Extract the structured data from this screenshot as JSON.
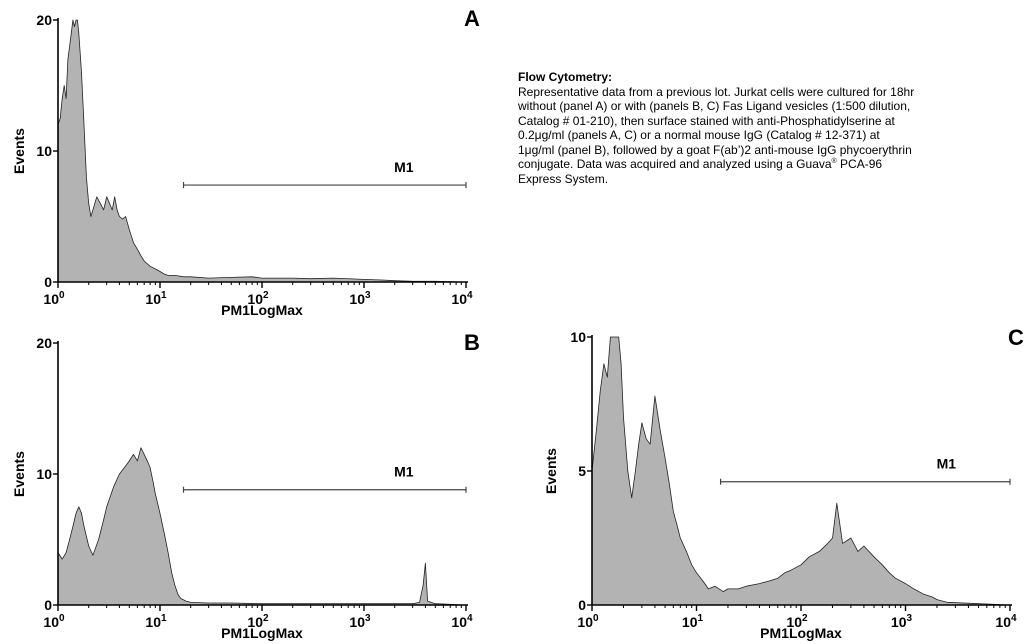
{
  "description": {
    "heading": "Flow Cytometry:",
    "text_part1": "Representative data from a previous lot.  Jurkat cells were cultured for 18hr without (panel A) or with (panels B, C) Fas Ligand vesicles (1:500 dilution, Catalog # 01-210), then surface stained with anti-Phosphatidylserine at 0.2μg/ml (panels A, C) or a normal mouse IgG (Catalog # 12-371) at 1μg/ml (panel B), followed by a goat F(ab’)2 anti-mouse IgG phycoerythrin conjugate.  Data was acquired and analyzed using a Guava",
    "registered_mark": "®",
    "text_part2": " PCA-96 Express System."
  },
  "colors": {
    "fill": "#b3b3b3",
    "line": "#222222",
    "marker": "#444444"
  },
  "chart_data": [
    {
      "type": "area",
      "panel_label": "A",
      "xlabel": "PM1LogMax",
      "ylabel": "Events",
      "x_scale": "log",
      "xlim": [
        1,
        10000
      ],
      "ylim": [
        0,
        20
      ],
      "yticks": [
        0,
        10,
        20
      ],
      "xticks": [
        {
          "base": "10",
          "exp": "0"
        },
        {
          "base": "10",
          "exp": "1"
        },
        {
          "base": "10",
          "exp": "2"
        },
        {
          "base": "10",
          "exp": "3"
        },
        {
          "base": "10",
          "exp": "4"
        }
      ],
      "marker": {
        "label": "M1",
        "x_start": 17,
        "x_end": 10000,
        "y": 7.4
      },
      "series": [
        {
          "x": [
            1,
            1.05,
            1.1,
            1.15,
            1.2,
            1.25,
            1.3,
            1.35,
            1.4,
            1.45,
            1.5,
            1.55,
            1.6,
            1.7,
            1.8,
            1.9,
            2,
            2.1,
            2.2,
            2.4,
            2.6,
            2.8,
            3,
            3.2,
            3.4,
            3.6,
            3.8,
            4,
            4.3,
            4.6,
            5,
            5.5,
            6,
            6.5,
            7,
            8,
            9,
            10,
            11,
            12,
            14,
            17,
            20,
            30,
            50,
            80,
            100,
            200,
            300,
            500,
            1000,
            1500,
            2000,
            3000,
            5000,
            10000
          ],
          "y": [
            12,
            12.5,
            14,
            15,
            14,
            17,
            18,
            19,
            20,
            19.5,
            20,
            20,
            19,
            16,
            12,
            8,
            6,
            5,
            5.5,
            6.5,
            6,
            5.5,
            6.5,
            6,
            5.5,
            6.5,
            5.5,
            5,
            4.8,
            5,
            4,
            3,
            2.5,
            2,
            1.6,
            1.2,
            1,
            0.8,
            0.6,
            0.5,
            0.5,
            0.4,
            0.4,
            0.3,
            0.35,
            0.4,
            0.3,
            0.3,
            0.25,
            0.3,
            0.2,
            0.15,
            0.1,
            0.05,
            0.05,
            0
          ]
        }
      ]
    },
    {
      "type": "area",
      "panel_label": "B",
      "xlabel": "PM1LogMax",
      "ylabel": "Events",
      "x_scale": "log",
      "xlim": [
        1,
        10000
      ],
      "ylim": [
        0,
        20
      ],
      "yticks": [
        0,
        10,
        20
      ],
      "xticks": [
        {
          "base": "10",
          "exp": "0"
        },
        {
          "base": "10",
          "exp": "1"
        },
        {
          "base": "10",
          "exp": "2"
        },
        {
          "base": "10",
          "exp": "3"
        },
        {
          "base": "10",
          "exp": "4"
        }
      ],
      "marker": {
        "label": "M1",
        "x_start": 17,
        "x_end": 10000,
        "y": 8.8
      },
      "series": [
        {
          "x": [
            1,
            1.1,
            1.2,
            1.3,
            1.4,
            1.5,
            1.6,
            1.7,
            1.8,
            2,
            2.2,
            2.5,
            2.8,
            3,
            3.5,
            4,
            4.5,
            5,
            5.5,
            6,
            6.5,
            7,
            7.5,
            8,
            8.5,
            9,
            10,
            11,
            12,
            13,
            14,
            15,
            16,
            18,
            20,
            30,
            50,
            100,
            200,
            500,
            1000,
            2000,
            3000,
            3500,
            3800,
            4000,
            4200,
            5000,
            10000
          ],
          "y": [
            4,
            3.5,
            4,
            5,
            6,
            7,
            7.5,
            7,
            6,
            4.5,
            3.8,
            5,
            6.5,
            7.5,
            9,
            10,
            10.5,
            11,
            11.5,
            11,
            12,
            11.5,
            11,
            10.5,
            9.5,
            8.5,
            7,
            5.5,
            4,
            2.5,
            1.5,
            0.8,
            0.5,
            0.3,
            0.2,
            0.15,
            0.15,
            0.1,
            0.1,
            0.1,
            0.1,
            0.1,
            0.1,
            0.2,
            1.5,
            3.2,
            0.3,
            0.1,
            0
          ]
        }
      ]
    },
    {
      "type": "area",
      "panel_label": "C",
      "xlabel": "PM1LogMax",
      "ylabel": "Events",
      "x_scale": "log",
      "xlim": [
        1,
        10000
      ],
      "ylim": [
        0,
        10
      ],
      "yticks": [
        0,
        5,
        10
      ],
      "xticks": [
        {
          "base": "10",
          "exp": "0"
        },
        {
          "base": "10",
          "exp": "1"
        },
        {
          "base": "10",
          "exp": "2"
        },
        {
          "base": "10",
          "exp": "3"
        },
        {
          "base": "10",
          "exp": "4"
        }
      ],
      "marker": {
        "label": "M1",
        "x_start": 17,
        "x_end": 10000,
        "y": 4.6
      },
      "series": [
        {
          "x": [
            1,
            1.1,
            1.2,
            1.3,
            1.4,
            1.5,
            1.6,
            1.7,
            1.8,
            1.9,
            2,
            2.2,
            2.4,
            2.6,
            2.8,
            3,
            3.3,
            3.6,
            4,
            4.5,
            5,
            5.5,
            6,
            6.5,
            7,
            8,
            9,
            10,
            11,
            12,
            13,
            15,
            18,
            20,
            25,
            30,
            40,
            50,
            60,
            70,
            80,
            100,
            120,
            150,
            180,
            200,
            220,
            250,
            300,
            350,
            400,
            500,
            600,
            700,
            800,
            1000,
            1200,
            1500,
            1800,
            2000,
            2500,
            10000
          ],
          "y": [
            5,
            6.5,
            8,
            9,
            8.5,
            10,
            10,
            10,
            10,
            9,
            7,
            5,
            4,
            5,
            6,
            6.8,
            6.2,
            6,
            7.8,
            6.5,
            5.5,
            4.5,
            3.5,
            3,
            2.5,
            2,
            1.5,
            1.2,
            1,
            0.8,
            0.6,
            0.7,
            0.5,
            0.6,
            0.6,
            0.7,
            0.8,
            0.9,
            1,
            1.2,
            1.3,
            1.5,
            1.8,
            2,
            2.3,
            2.5,
            3.8,
            2.3,
            2.5,
            2,
            2.2,
            1.8,
            1.5,
            1.2,
            1,
            0.8,
            0.6,
            0.4,
            0.3,
            0.2,
            0.1,
            0
          ]
        }
      ]
    }
  ]
}
